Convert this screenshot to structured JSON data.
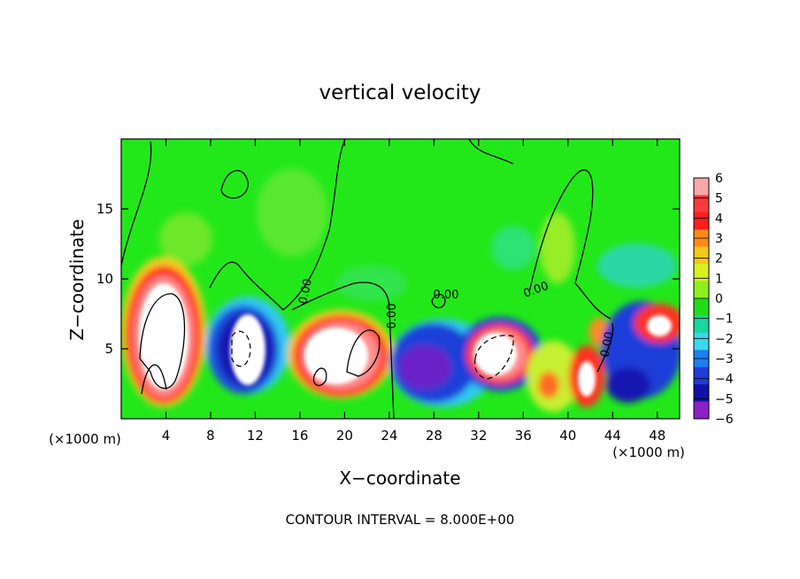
{
  "chart_data": {
    "type": "heatmap",
    "title": "vertical velocity",
    "xlabel": "X−coordinate",
    "ylabel": "Z−coordinate",
    "x_unit_left": "(×1000 m)",
    "x_unit_right": "(×1000 m)",
    "footer": "CONTOUR INTERVAL = 8.000E+00",
    "xlim": [
      0,
      50
    ],
    "ylim": [
      0,
      20
    ],
    "x_ticks": [
      "4",
      "8",
      "12",
      "16",
      "20",
      "24",
      "28",
      "32",
      "36",
      "40",
      "44",
      "48"
    ],
    "y_ticks": [
      "5",
      "10",
      "15"
    ],
    "contour_labels": [
      "0.00",
      "0.00",
      "0.00",
      "0.00",
      "0.00"
    ],
    "colorbar": {
      "range": [
        -6,
        6
      ],
      "ticks": [
        "6",
        "5",
        "4",
        "3",
        "2",
        "1",
        "0",
        "−1",
        "−2",
        "−3",
        "−4",
        "−5",
        "−6"
      ],
      "colors": [
        "#f7a8a8",
        "#ff3a3a",
        "#ff1f1f",
        "#ff8a1a",
        "#f3c81a",
        "#d8f01e",
        "#8df01e",
        "#22dc18",
        "#18d8a0",
        "#3ad8f0",
        "#1e7ff0",
        "#1e3cd8",
        "#1212a8",
        "#8a22c8"
      ]
    },
    "features": [
      {
        "x": 4.5,
        "z": 5.5,
        "w": 12
      },
      {
        "x": 10.5,
        "z": 5,
        "w": -10
      },
      {
        "x": 20.5,
        "z": 5.5,
        "w": 10
      },
      {
        "x": 28.5,
        "z": 4,
        "w": -5
      },
      {
        "x": 33.5,
        "z": 5,
        "w": 10
      },
      {
        "x": 41.5,
        "z": 3,
        "w": 8
      },
      {
        "x": 46.5,
        "z": 6.5,
        "w": 8
      }
    ]
  }
}
